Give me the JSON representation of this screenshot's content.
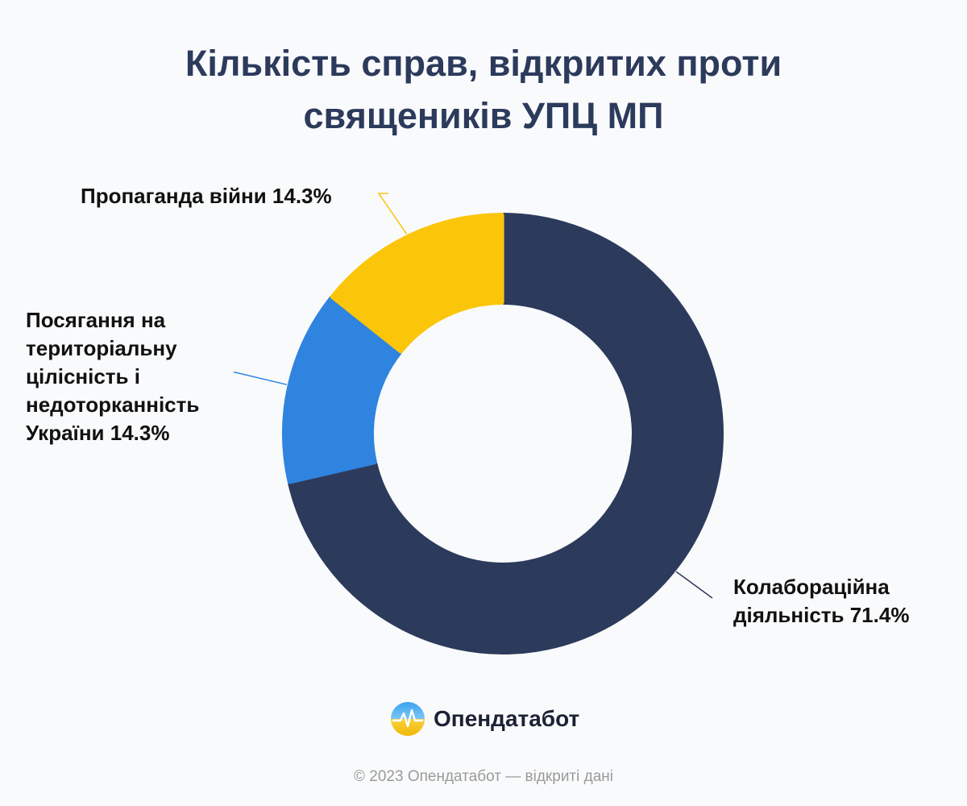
{
  "chart_data": {
    "type": "pie",
    "variant": "donut",
    "title": "Кількість справ, відкритих проти священиків УПЦ МП",
    "title_lines": [
      "Кількість справ, відкритих проти",
      "священиків УПЦ МП"
    ],
    "slices": [
      {
        "name": "Колабораційна діяльність",
        "value": 71.4,
        "color": "#2c3a5c",
        "label_lines": [
          "Колабораційна",
          "діяльність 71.4%"
        ]
      },
      {
        "name": "Посягання на територіальну цілісність і недоторканність України",
        "value": 14.3,
        "color": "#2f84df",
        "label_lines": [
          "Посягання на",
          "територіальну",
          "цілісність і",
          "недоторканність",
          "України 14.3%"
        ]
      },
      {
        "name": "Пропаганда війни",
        "value": 14.3,
        "color": "#fbc50a",
        "label_lines": [
          "Пропаганда війни 14.3%"
        ]
      }
    ],
    "start_angle": "12 o'clock",
    "direction": "clockwise"
  },
  "brand": {
    "name": "Опендатабот",
    "logo_icon": "opendatabot-logo-icon"
  },
  "footer": {
    "text": "© 2023 Опендатабот — відкриті дані"
  }
}
